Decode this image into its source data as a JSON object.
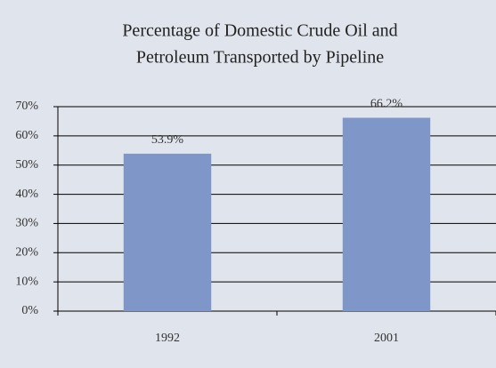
{
  "chart_data": {
    "type": "bar",
    "title": [
      "Percentage of Domestic Crude Oil and",
      "Petroleum Transported by Pipeline"
    ],
    "categories": [
      "1992",
      "2001"
    ],
    "values": [
      53.9,
      66.2
    ],
    "value_labels": [
      "53.9%",
      "66.2%"
    ],
    "color": "#7f96c8",
    "ylim": [
      0,
      70
    ],
    "yticks": [
      {
        "value": 0,
        "label": "0%"
      },
      {
        "value": 10,
        "label": "10%"
      },
      {
        "value": 20,
        "label": "20%"
      },
      {
        "value": 30,
        "label": "30%"
      },
      {
        "value": 40,
        "label": "40%"
      },
      {
        "value": 50,
        "label": "50%"
      },
      {
        "value": 60,
        "label": "60%"
      },
      {
        "value": 70,
        "label": "70%"
      }
    ],
    "grid": true
  }
}
